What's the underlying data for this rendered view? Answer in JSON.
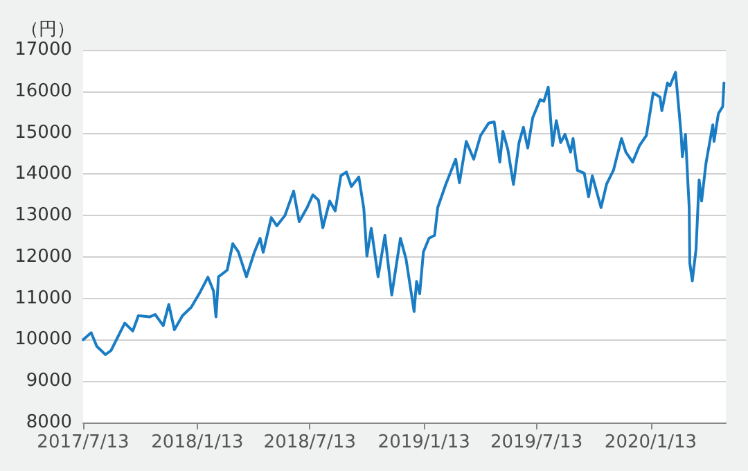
{
  "chart_data": {
    "type": "line",
    "ylabel": "（円）",
    "color": "#1a7dc4",
    "grid": "y",
    "marker": "none",
    "line_style": "solid",
    "ylim": [
      8000,
      17000
    ],
    "yticks": [
      8000,
      9000,
      10000,
      11000,
      12000,
      13000,
      14000,
      15000,
      16000,
      17000
    ],
    "xlim": [
      "2017-07-13",
      "2020-05-13"
    ],
    "xticks": [
      {
        "value": "2017-07-13",
        "label": "2017/7/13"
      },
      {
        "value": "2018-01-13",
        "label": "2018/1/13"
      },
      {
        "value": "2018-07-13",
        "label": "2018/7/13"
      },
      {
        "value": "2019-01-13",
        "label": "2019/1/13"
      },
      {
        "value": "2019-07-13",
        "label": "2019/7/13"
      },
      {
        "value": "2020-01-13",
        "label": "2020/1/13"
      }
    ],
    "x": [
      "2017-07-13",
      "2017-07-26",
      "2017-08-04",
      "2017-08-18",
      "2017-08-27",
      "2017-09-04",
      "2017-09-18",
      "2017-10-01",
      "2017-10-10",
      "2017-10-28",
      "2017-11-06",
      "2017-11-19",
      "2017-11-28",
      "2017-12-07",
      "2017-12-20",
      "2018-01-03",
      "2018-01-16",
      "2018-01-30",
      "2018-02-08",
      "2018-02-12",
      "2018-02-16",
      "2018-03-02",
      "2018-03-11",
      "2018-03-20",
      "2018-04-02",
      "2018-04-15",
      "2018-04-24",
      "2018-04-29",
      "2018-05-12",
      "2018-05-21",
      "2018-06-03",
      "2018-06-17",
      "2018-06-26",
      "2018-07-09",
      "2018-07-18",
      "2018-07-27",
      "2018-08-03",
      "2018-08-14",
      "2018-08-23",
      "2018-09-01",
      "2018-09-10",
      "2018-09-18",
      "2018-09-30",
      "2018-10-08",
      "2018-10-13",
      "2018-10-20",
      "2018-10-31",
      "2018-11-11",
      "2018-11-22",
      "2018-12-06",
      "2018-12-15",
      "2018-12-28",
      "2019-01-01",
      "2019-01-06",
      "2019-01-12",
      "2019-01-21",
      "2019-01-30",
      "2019-02-04",
      "2019-02-17",
      "2019-03-05",
      "2019-03-11",
      "2019-03-22",
      "2019-04-03",
      "2019-04-14",
      "2019-04-27",
      "2019-05-06",
      "2019-05-15",
      "2019-05-20",
      "2019-05-28",
      "2019-06-06",
      "2019-06-15",
      "2019-06-22",
      "2019-06-29",
      "2019-07-07",
      "2019-07-19",
      "2019-07-25",
      "2019-08-01",
      "2019-08-08",
      "2019-08-14",
      "2019-08-21",
      "2019-08-28",
      "2019-09-06",
      "2019-09-10",
      "2019-09-17",
      "2019-09-28",
      "2019-10-05",
      "2019-10-11",
      "2019-10-25",
      "2019-11-03",
      "2019-11-14",
      "2019-11-27",
      "2019-12-04",
      "2019-12-15",
      "2019-12-26",
      "2020-01-06",
      "2020-01-17",
      "2020-01-28",
      "2020-01-31",
      "2020-02-09",
      "2020-02-13",
      "2020-02-22",
      "2020-03-02",
      "2020-03-04",
      "2020-03-09",
      "2020-03-13",
      "2020-03-15",
      "2020-03-16",
      "2020-03-20",
      "2020-03-26",
      "2020-03-31",
      "2020-04-04",
      "2020-04-11",
      "2020-04-22",
      "2020-04-24",
      "2020-05-01",
      "2020-05-08",
      "2020-05-10"
    ],
    "values": [
      10000,
      10170,
      9840,
      9640,
      9740,
      9980,
      10400,
      10210,
      10580,
      10550,
      10610,
      10340,
      10850,
      10240,
      10580,
      10780,
      11110,
      11510,
      11180,
      10550,
      11520,
      11680,
      12320,
      12120,
      11520,
      12120,
      12450,
      12110,
      12950,
      12750,
      13000,
      13590,
      12850,
      13200,
      13500,
      13370,
      12700,
      13350,
      13110,
      13960,
      14050,
      13700,
      13930,
      13170,
      12020,
      12690,
      11520,
      12520,
      11080,
      12450,
      11950,
      10680,
      11410,
      11110,
      12120,
      12450,
      12520,
      13190,
      13750,
      14360,
      13790,
      14790,
      14360,
      14930,
      15230,
      15260,
      14290,
      15030,
      14590,
      13750,
      14760,
      15130,
      14630,
      15360,
      15800,
      15760,
      16100,
      14690,
      15290,
      14760,
      14960,
      14530,
      14860,
      14090,
      14020,
      13450,
      13960,
      13190,
      13760,
      14090,
      14860,
      14530,
      14290,
      14690,
      14930,
      15960,
      15860,
      15530,
      16200,
      16130,
      16460,
      14960,
      14420,
      14960,
      13760,
      13190,
      11850,
      11420,
      12180,
      13860,
      13350,
      14260,
      15190,
      14790,
      15460,
      15630,
      16200
    ]
  }
}
